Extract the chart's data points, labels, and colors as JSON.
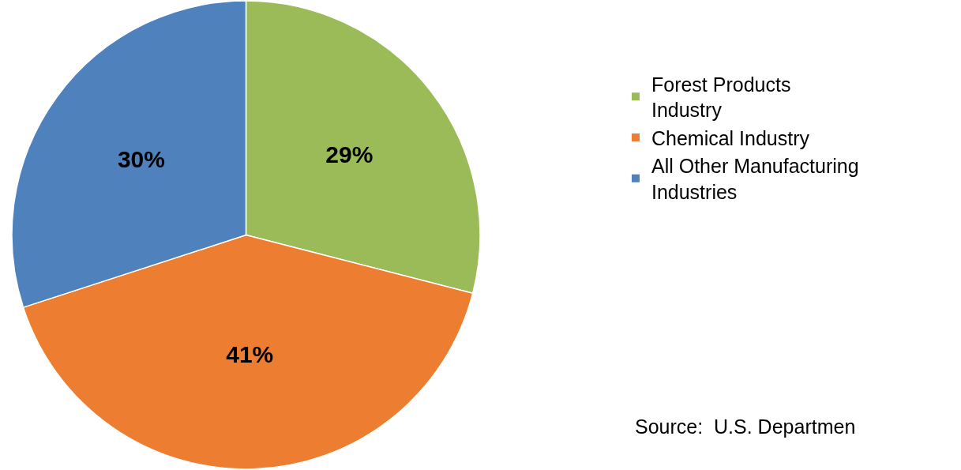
{
  "chart_data": {
    "type": "pie",
    "categories": [
      "Forest Products Industry",
      "Chemical Industry",
      "All Other Manufacturing Industries"
    ],
    "values": [
      29,
      41,
      30
    ],
    "colors": [
      "#9bbb59",
      "#ed7d31",
      "#4f81bd"
    ],
    "value_labels": [
      "29%",
      "41%",
      "30%"
    ],
    "legend": "right",
    "annotations": [
      "Source:  U.S. Departmen"
    ]
  }
}
